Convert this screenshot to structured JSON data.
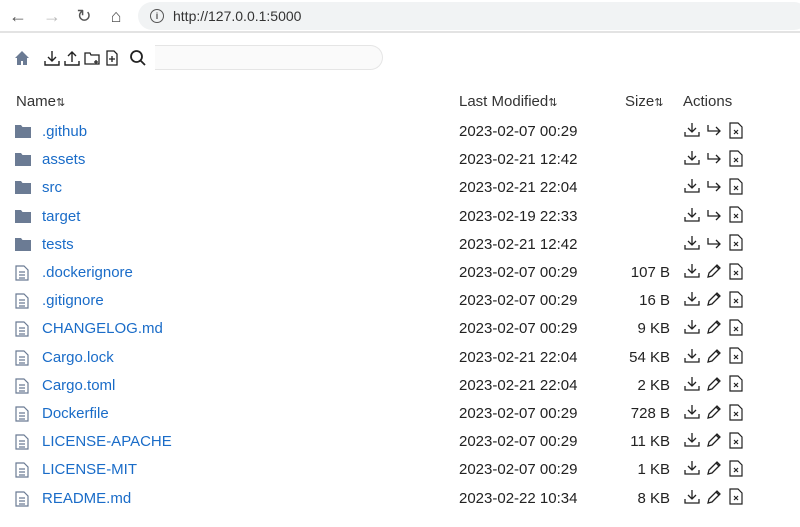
{
  "browser": {
    "url": "http://127.0.0.1:5000"
  },
  "toolbar": {
    "search_placeholder": ""
  },
  "columns": {
    "name": "Name",
    "modified": "Last Modified",
    "size": "Size",
    "actions": "Actions"
  },
  "colors": {
    "link": "#1a6cc8",
    "folder": "#6b7b94"
  },
  "rows": [
    {
      "type": "folder",
      "name": ".github",
      "modified": "2023-02-07 00:29",
      "size": ""
    },
    {
      "type": "folder",
      "name": "assets",
      "modified": "2023-02-21 12:42",
      "size": ""
    },
    {
      "type": "folder",
      "name": "src",
      "modified": "2023-02-21 22:04",
      "size": ""
    },
    {
      "type": "folder",
      "name": "target",
      "modified": "2023-02-19 22:33",
      "size": ""
    },
    {
      "type": "folder",
      "name": "tests",
      "modified": "2023-02-21 12:42",
      "size": ""
    },
    {
      "type": "file",
      "name": ".dockerignore",
      "modified": "2023-02-07 00:29",
      "size": "107 B"
    },
    {
      "type": "file",
      "name": ".gitignore",
      "modified": "2023-02-07 00:29",
      "size": "16 B"
    },
    {
      "type": "file",
      "name": "CHANGELOG.md",
      "modified": "2023-02-07 00:29",
      "size": "9 KB"
    },
    {
      "type": "file",
      "name": "Cargo.lock",
      "modified": "2023-02-21 22:04",
      "size": "54 KB"
    },
    {
      "type": "file",
      "name": "Cargo.toml",
      "modified": "2023-02-21 22:04",
      "size": "2 KB"
    },
    {
      "type": "file",
      "name": "Dockerfile",
      "modified": "2023-02-07 00:29",
      "size": "728 B"
    },
    {
      "type": "file",
      "name": "LICENSE-APACHE",
      "modified": "2023-02-07 00:29",
      "size": "11 KB"
    },
    {
      "type": "file",
      "name": "LICENSE-MIT",
      "modified": "2023-02-07 00:29",
      "size": "1 KB"
    },
    {
      "type": "file",
      "name": "README.md",
      "modified": "2023-02-22 10:34",
      "size": "8 KB"
    }
  ]
}
